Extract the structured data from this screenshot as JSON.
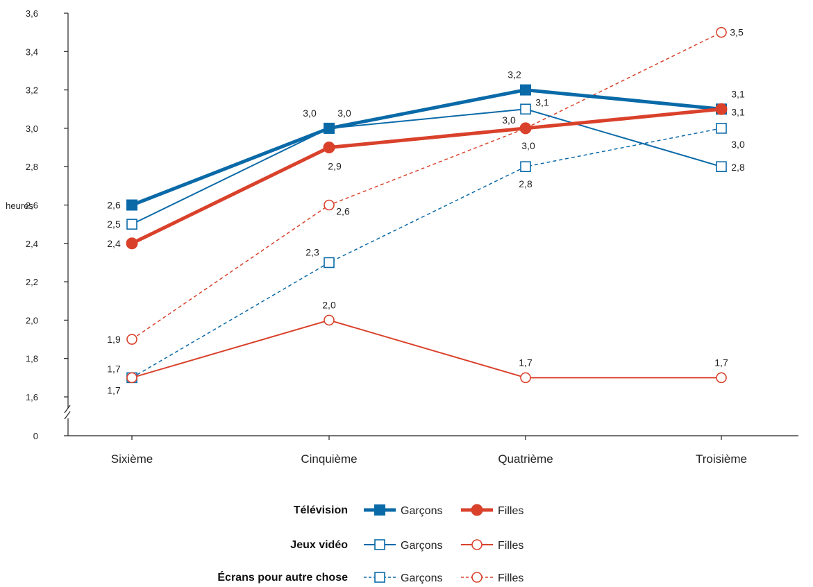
{
  "chart_data": {
    "type": "line",
    "ylabel": "heures",
    "categories": [
      "Sixième",
      "Cinquième",
      "Quatrième",
      "Troisième"
    ],
    "y_ticks": [
      "0",
      "1,6",
      "1,8",
      "2,0",
      "2,2",
      "2,4",
      "2,6",
      "2,8",
      "3,0",
      "3,2",
      "3,4",
      "3,6"
    ],
    "ylim": [
      1.6,
      3.6
    ],
    "y_axis_break": true,
    "grid": false,
    "legend_position": "bottom",
    "series": [
      {
        "group": "Télévision",
        "name": "Garçons",
        "color": "#0a6aa8",
        "style": "thick",
        "marker": "filled-square",
        "values": [
          2.6,
          3.0,
          3.2,
          3.1
        ],
        "labels": [
          "2,6",
          "3,0",
          "3,2",
          "3,1"
        ]
      },
      {
        "group": "Télévision",
        "name": "Filles",
        "color": "#d9412b",
        "style": "thick",
        "marker": "filled-circle",
        "values": [
          2.4,
          2.9,
          3.0,
          3.1
        ],
        "labels": [
          "2,4",
          "2,9",
          "3,0",
          "3,1"
        ]
      },
      {
        "group": "Jeux vidéo",
        "name": "Garçons",
        "color": "#0a6aa8",
        "style": "thin",
        "marker": "open-square",
        "values": [
          2.5,
          3.0,
          3.1,
          2.8
        ],
        "labels": [
          "2,5",
          "3,0",
          "3,1",
          "2,8"
        ]
      },
      {
        "group": "Jeux vidéo",
        "name": "Filles",
        "color": "#d9412b",
        "style": "thin",
        "marker": "open-circle",
        "values": [
          1.7,
          2.0,
          1.7,
          1.7
        ],
        "labels": [
          "1,7",
          "2,0",
          "1,7",
          "1,7"
        ]
      },
      {
        "group": "Écrans pour autre chose",
        "name": "Garçons",
        "color": "#0a6aa8",
        "style": "dashed",
        "marker": "open-square",
        "values": [
          1.7,
          2.3,
          2.8,
          3.0
        ],
        "labels": [
          "1,7",
          "2,3",
          "2,8",
          "3,0"
        ]
      },
      {
        "group": "Écrans pour autre chose",
        "name": "Filles",
        "color": "#d9412b",
        "style": "dashed",
        "marker": "open-circle",
        "values": [
          1.9,
          2.6,
          3.0,
          3.5
        ],
        "labels": [
          "1,9",
          "2,6",
          "3,0",
          "3,5"
        ]
      }
    ],
    "legend": [
      {
        "group_label": "Télévision",
        "items": [
          0,
          1
        ]
      },
      {
        "group_label": "Jeux vidéo",
        "items": [
          2,
          3
        ]
      },
      {
        "group_label": "Écrans pour autre chose",
        "items": [
          4,
          5
        ]
      }
    ]
  }
}
